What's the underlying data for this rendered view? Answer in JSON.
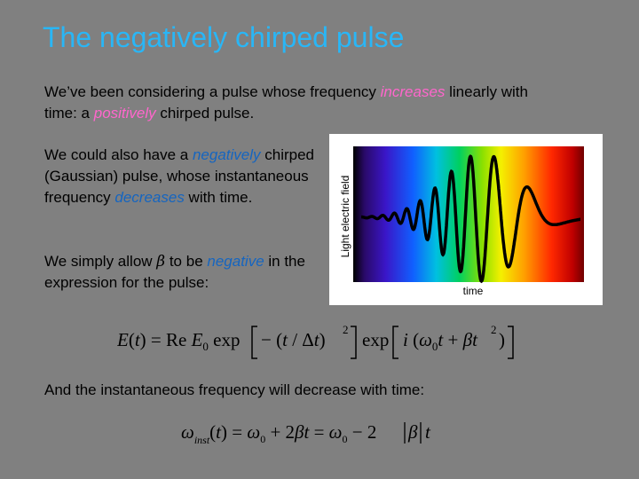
{
  "title": "The negatively chirped pulse",
  "para1": {
    "t1": "We’ve been considering a pulse whose frequency ",
    "h1": "increases",
    "t2": " linearly with time: a ",
    "h2": "positively",
    "t3": " chirped pulse."
  },
  "para2": {
    "t1": "We could also have a ",
    "h1": "negatively",
    "t2": " chirped (Gaussian) pulse, whose instantaneous frequency ",
    "h2": "decreases",
    "t3": " with time."
  },
  "para3": {
    "t1": "We simply allow ",
    "beta": "β",
    "t2": " to be ",
    "h1": "negative",
    "t3": " in the expression for the pulse:"
  },
  "para4": "And the instantaneous frequency will decrease with time:",
  "figure": {
    "ylabel": "Light electric field",
    "xlabel": "time"
  },
  "colors": {
    "title": "#29b6f6",
    "pink": "#ff66cc",
    "blue": "#1565c0"
  }
}
